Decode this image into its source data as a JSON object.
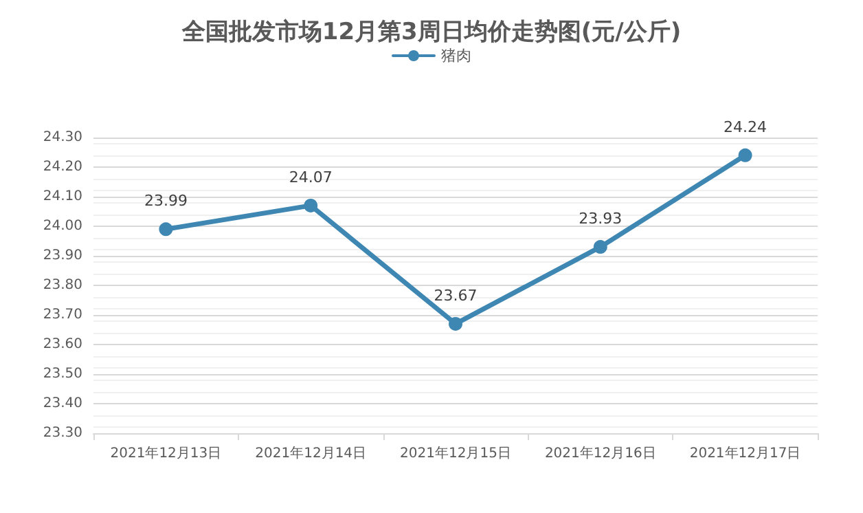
{
  "chart_data": {
    "type": "line",
    "title": "全国批发市场12月第3周日均价走势图(元/公斤)",
    "categories": [
      "2021年12月13日",
      "2021年12月14日",
      "2021年12月15日",
      "2021年12月16日",
      "2021年12月17日"
    ],
    "series": [
      {
        "name": "猪肉",
        "color": "#3f87b3",
        "values": [
          23.99,
          24.07,
          23.67,
          23.93,
          24.24
        ]
      }
    ],
    "ylim": [
      23.3,
      24.3
    ],
    "yticks": [
      {
        "value": 23.3,
        "label": "23.30"
      },
      {
        "value": 23.4,
        "label": "23.40"
      },
      {
        "value": 23.5,
        "label": "23.50"
      },
      {
        "value": 23.6,
        "label": "23.60"
      },
      {
        "value": 23.7,
        "label": "23.70"
      },
      {
        "value": 23.8,
        "label": "23.80"
      },
      {
        "value": 23.9,
        "label": "23.90"
      },
      {
        "value": 24.0,
        "label": "24.00"
      },
      {
        "value": 24.1,
        "label": "24.10"
      },
      {
        "value": 24.2,
        "label": "24.20"
      },
      {
        "value": 24.3,
        "label": "24.30"
      }
    ],
    "grid": "y",
    "legend": "top",
    "marker": "circle",
    "line_style": "solid",
    "data_labels": true
  }
}
